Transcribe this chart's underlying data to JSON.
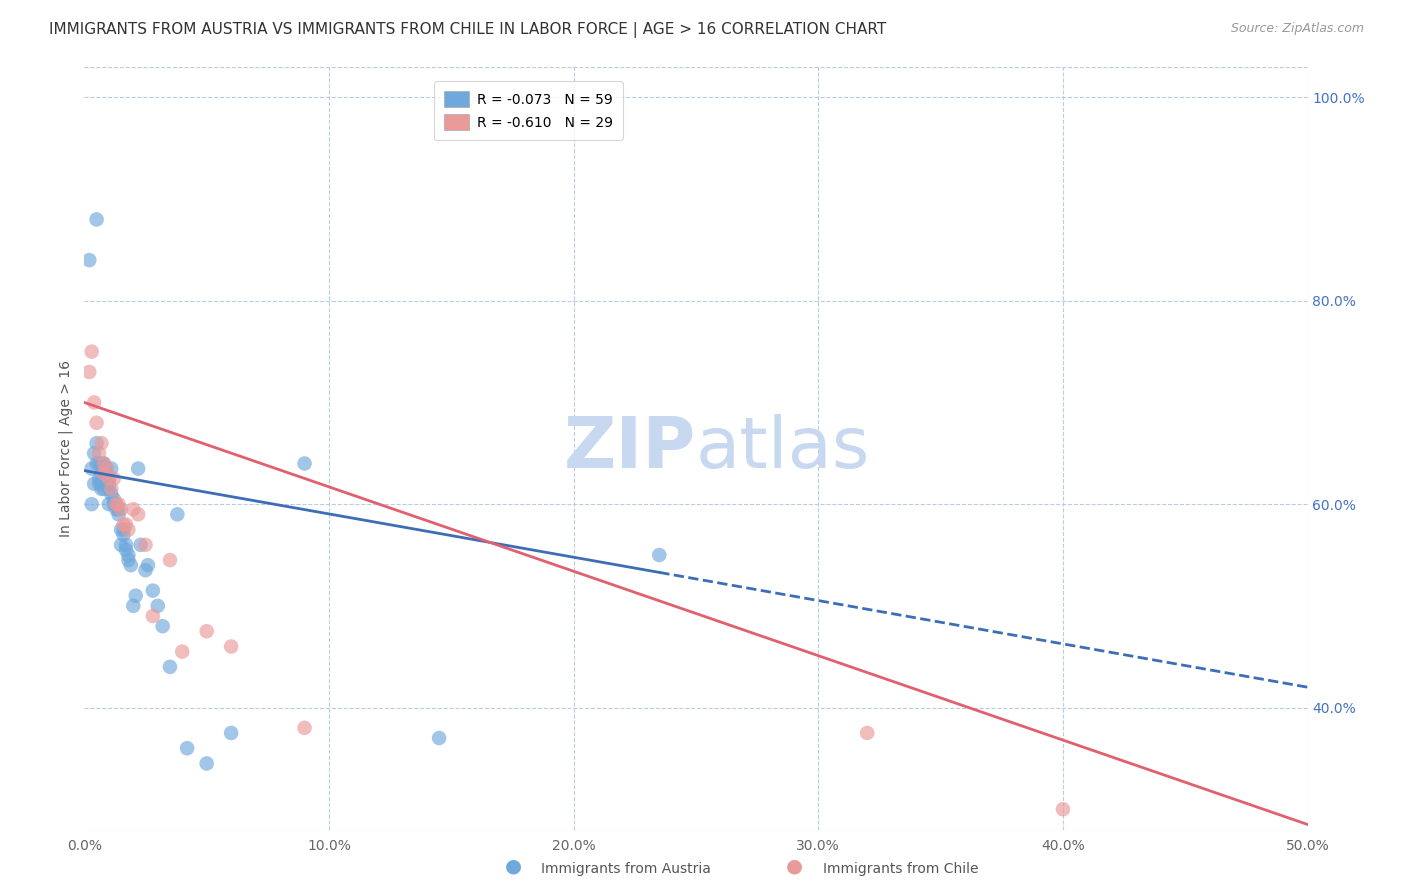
{
  "title": "IMMIGRANTS FROM AUSTRIA VS IMMIGRANTS FROM CHILE IN LABOR FORCE | AGE > 16 CORRELATION CHART",
  "source": "Source: ZipAtlas.com",
  "ylabel": "In Labor Force | Age > 16",
  "xlim": [
    0.0,
    0.5
  ],
  "ylim": [
    0.28,
    1.03
  ],
  "xticks": [
    0.0,
    0.1,
    0.2,
    0.3,
    0.4,
    0.5
  ],
  "xtick_labels": [
    "0.0%",
    "10.0%",
    "20.0%",
    "30.0%",
    "40.0%",
    "50.0%"
  ],
  "yticks_right": [
    0.4,
    0.6,
    0.8,
    1.0
  ],
  "ytick_labels_right": [
    "40.0%",
    "60.0%",
    "80.0%",
    "100.0%"
  ],
  "legend_austria": "R = -0.073   N = 59",
  "legend_chile": "R = -0.610   N = 29",
  "austria_color": "#6fa8dc",
  "chile_color": "#ea9999",
  "austria_line_color": "#3d6eb5",
  "chile_line_color": "#e06070",
  "austria_scatter_x": [
    0.002,
    0.003,
    0.003,
    0.004,
    0.004,
    0.005,
    0.005,
    0.005,
    0.006,
    0.006,
    0.006,
    0.007,
    0.007,
    0.007,
    0.007,
    0.008,
    0.008,
    0.008,
    0.009,
    0.009,
    0.009,
    0.01,
    0.01,
    0.01,
    0.01,
    0.011,
    0.011,
    0.012,
    0.012,
    0.013,
    0.013,
    0.014,
    0.014,
    0.015,
    0.015,
    0.016,
    0.016,
    0.017,
    0.017,
    0.018,
    0.018,
    0.019,
    0.02,
    0.021,
    0.022,
    0.023,
    0.025,
    0.026,
    0.028,
    0.03,
    0.032,
    0.035,
    0.038,
    0.042,
    0.05,
    0.06,
    0.09,
    0.145,
    0.235
  ],
  "austria_scatter_y": [
    0.84,
    0.635,
    0.6,
    0.65,
    0.62,
    0.66,
    0.64,
    0.88,
    0.64,
    0.625,
    0.62,
    0.64,
    0.63,
    0.62,
    0.615,
    0.64,
    0.63,
    0.615,
    0.635,
    0.63,
    0.62,
    0.625,
    0.62,
    0.615,
    0.6,
    0.635,
    0.61,
    0.605,
    0.6,
    0.6,
    0.595,
    0.59,
    0.595,
    0.575,
    0.56,
    0.575,
    0.57,
    0.56,
    0.555,
    0.55,
    0.545,
    0.54,
    0.5,
    0.51,
    0.635,
    0.56,
    0.535,
    0.54,
    0.515,
    0.5,
    0.48,
    0.44,
    0.59,
    0.36,
    0.345,
    0.375,
    0.64,
    0.37,
    0.55
  ],
  "chile_scatter_x": [
    0.002,
    0.003,
    0.004,
    0.005,
    0.006,
    0.007,
    0.008,
    0.008,
    0.009,
    0.01,
    0.011,
    0.012,
    0.013,
    0.014,
    0.015,
    0.016,
    0.017,
    0.018,
    0.02,
    0.022,
    0.025,
    0.028,
    0.035,
    0.04,
    0.05,
    0.06,
    0.09,
    0.32,
    0.4
  ],
  "chile_scatter_y": [
    0.73,
    0.75,
    0.7,
    0.68,
    0.65,
    0.66,
    0.63,
    0.64,
    0.635,
    0.625,
    0.615,
    0.625,
    0.6,
    0.6,
    0.595,
    0.58,
    0.58,
    0.575,
    0.595,
    0.59,
    0.56,
    0.49,
    0.545,
    0.455,
    0.475,
    0.46,
    0.38,
    0.375,
    0.3
  ],
  "austria_line_x0": 0.0,
  "austria_line_y0": 0.633,
  "austria_line_solid_x1": 0.235,
  "austria_line_x1": 0.5,
  "austria_line_y1": 0.42,
  "chile_line_x0": 0.0,
  "chile_line_y0": 0.7,
  "chile_line_x1": 0.5,
  "chile_line_y1": 0.285,
  "background_color": "#ffffff",
  "grid_color": "#b8cce4",
  "title_fontsize": 11,
  "axis_label_fontsize": 10,
  "tick_fontsize": 10,
  "legend_fontsize": 10,
  "watermark_zip": "ZIP",
  "watermark_atlas": "atlas",
  "watermark_color": "#c8d8f0",
  "watermark_fontsize": 52,
  "right_tick_color": "#4472c4"
}
